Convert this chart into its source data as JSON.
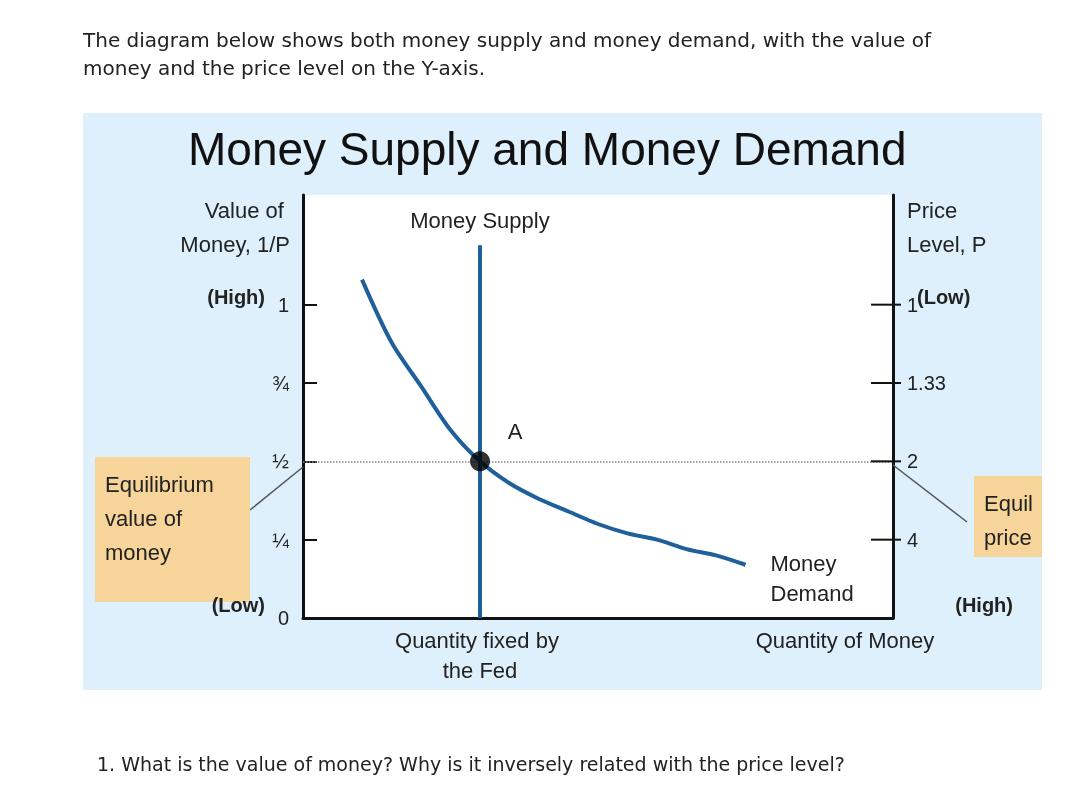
{
  "chart_data": {
    "type": "line",
    "title": "Money Supply and Money Demand",
    "subtitle": "The diagram below shows both money supply and money demand, with the value of money and the price level on the Y-axis.",
    "xlabel": "Quantity of Money",
    "ylabel": "Value of Money, 1/P",
    "y2label": "Price Level, P",
    "categories": [
      null,
      null,
      null,
      null,
      null,
      null,
      null,
      null,
      null,
      null,
      null,
      null,
      null,
      null,
      null,
      null,
      null,
      null,
      null,
      null,
      null
    ],
    "ylim": [
      0,
      1.35
    ],
    "yticks": [
      0,
      {
        "value": 0.25,
        "label": "¼"
      },
      {
        "value": 0.5,
        "label": "½"
      },
      {
        "value": 0.75,
        "label": "¾"
      },
      1
    ],
    "series": [
      {
        "name": "Money Demand",
        "color": "#1f5f9a",
        "values": [
          null,
          null,
          1.08,
          0.88,
          0.74,
          0.6,
          0.5,
          0.43,
          0.38,
          0.34,
          0.3,
          0.27,
          0.25,
          0.22,
          0.2,
          0.17,
          null,
          null,
          null,
          null,
          null
        ]
      },
      {
        "name": "Money Supply",
        "type": "bar",
        "color": "#1f5f9a",
        "values": [
          null,
          null,
          null,
          null,
          null,
          null,
          1.19,
          null,
          null,
          null,
          null,
          null,
          null,
          null,
          null,
          null,
          null,
          null,
          null,
          null,
          null
        ]
      },
      {
        "type": "scatter",
        "color": "#000000",
        "values": [
          null,
          null,
          null,
          null,
          null,
          null,
          0.5,
          null,
          null,
          null,
          null,
          null,
          null,
          null,
          null,
          null,
          null,
          null,
          null,
          null,
          null
        ]
      }
    ],
    "ref_lines": [
      {
        "axis": "y",
        "value": 0.5,
        "line_style": "dotted",
        "color": "#888888"
      }
    ],
    "grid": false,
    "annotations": [
      "(High)",
      "(Low)",
      "(Low)",
      "(High)",
      "A",
      "Quantity fixed by the Fed",
      "Equilibrium value of money",
      "Equil price",
      "1",
      "1.33",
      "2",
      "4",
      "1. What is the value of money? Why is it inversely related with the price level?"
    ]
  }
}
